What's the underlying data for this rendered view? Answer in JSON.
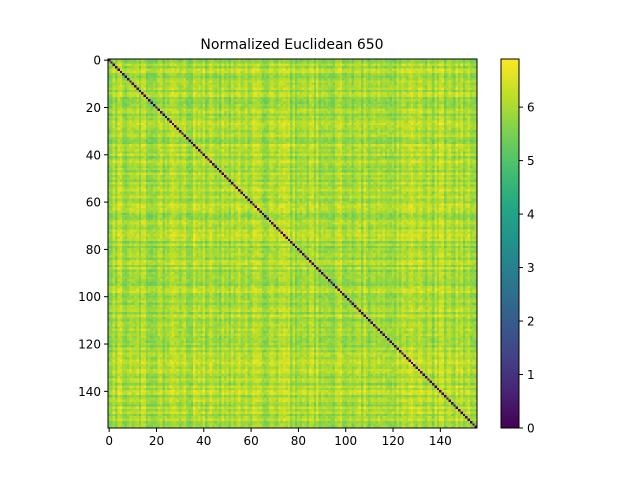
{
  "chart_data": {
    "type": "heatmap",
    "title": "Normalized Euclidean 650",
    "xlabel": "",
    "ylabel": "",
    "n": 156,
    "xlim": [
      -0.5,
      155.5
    ],
    "ylim": [
      155.5,
      -0.5
    ],
    "x_ticks": [
      0,
      20,
      40,
      60,
      80,
      100,
      120,
      140
    ],
    "x_tick_labels": [
      "0",
      "20",
      "40",
      "60",
      "80",
      "100",
      "120",
      "140"
    ],
    "y_ticks": [
      0,
      20,
      40,
      60,
      80,
      100,
      120,
      140
    ],
    "y_tick_labels": [
      "0",
      "20",
      "40",
      "60",
      "80",
      "100",
      "120",
      "140"
    ],
    "diagonal_value": 0,
    "off_diagonal_typical_range": [
      5.2,
      6.9
    ],
    "off_diagonal_mean": 6.0,
    "colormap": "viridis",
    "colorbar": {
      "min": 0,
      "max": 6.9,
      "ticks": [
        0,
        1,
        2,
        3,
        4,
        5,
        6
      ],
      "tick_labels": [
        "0",
        "1",
        "2",
        "3",
        "4",
        "5",
        "6"
      ]
    },
    "grid": false,
    "legend": "none"
  }
}
